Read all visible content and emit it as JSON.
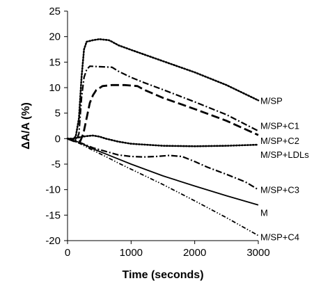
{
  "chart_data": {
    "type": "line",
    "xlabel": "Time (seconds)",
    "ylabel": "ΔA/A (%)",
    "xlim": [
      0,
      3000
    ],
    "ylim": [
      -20,
      25
    ],
    "x_ticks": [
      "0",
      "1000",
      "2000",
      "3000"
    ],
    "y_ticks": [
      "-20",
      "-15",
      "-10",
      "-5",
      "0",
      "5",
      "10",
      "15",
      "20",
      "25"
    ],
    "grid": false,
    "legend": "none",
    "series": [
      {
        "name": "M/SP",
        "style": "dotted",
        "points": [
          [
            0,
            0
          ],
          [
            80,
            -0.3
          ],
          [
            130,
            0.5
          ],
          [
            180,
            4
          ],
          [
            220,
            12
          ],
          [
            260,
            17.5
          ],
          [
            300,
            19
          ],
          [
            400,
            19.3
          ],
          [
            500,
            19.5
          ],
          [
            650,
            19.3
          ],
          [
            700,
            19
          ],
          [
            800,
            18.3
          ],
          [
            1000,
            17.4
          ],
          [
            1500,
            15.2
          ],
          [
            2000,
            13
          ],
          [
            2500,
            10.5
          ],
          [
            3000,
            7.5
          ]
        ]
      },
      {
        "name": "M/SP+C1",
        "style": "dash-dot",
        "points": [
          [
            0,
            0
          ],
          [
            100,
            -0.5
          ],
          [
            150,
            0
          ],
          [
            180,
            1
          ],
          [
            220,
            8
          ],
          [
            260,
            12
          ],
          [
            300,
            13.5
          ],
          [
            350,
            14.2
          ],
          [
            500,
            14.1
          ],
          [
            700,
            14
          ],
          [
            800,
            13.2
          ],
          [
            900,
            12.6
          ],
          [
            1000,
            12
          ],
          [
            1200,
            11
          ],
          [
            1500,
            9.6
          ],
          [
            2000,
            7.2
          ],
          [
            2500,
            4.7
          ],
          [
            3000,
            1.5
          ]
        ]
      },
      {
        "name": "M/SP+C2",
        "style": "long-dash",
        "points": [
          [
            0,
            0
          ],
          [
            100,
            -0.5
          ],
          [
            200,
            -0.5
          ],
          [
            250,
            1
          ],
          [
            300,
            4
          ],
          [
            350,
            7
          ],
          [
            400,
            8.5
          ],
          [
            450,
            9.5
          ],
          [
            550,
            10.3
          ],
          [
            700,
            10.5
          ],
          [
            900,
            10.5
          ],
          [
            1100,
            10.3
          ],
          [
            1200,
            9.6
          ],
          [
            1500,
            8
          ],
          [
            2000,
            5.8
          ],
          [
            2500,
            3.5
          ],
          [
            3000,
            0.7
          ]
        ]
      },
      {
        "name": "M/SP+LDLs",
        "style": "dotted",
        "points": [
          [
            0,
            0
          ],
          [
            100,
            0
          ],
          [
            200,
            0.3
          ],
          [
            300,
            0.5
          ],
          [
            400,
            0.6
          ],
          [
            500,
            0.4
          ],
          [
            600,
            0
          ],
          [
            800,
            -0.6
          ],
          [
            1000,
            -1
          ],
          [
            1500,
            -1.4
          ],
          [
            2000,
            -1.5
          ],
          [
            2500,
            -1.4
          ],
          [
            3000,
            -1.2
          ]
        ]
      },
      {
        "name": "M/SP+C3",
        "style": "dash-dot",
        "points": [
          [
            0,
            0
          ],
          [
            200,
            -0.8
          ],
          [
            400,
            -1.8
          ],
          [
            600,
            -2.5
          ],
          [
            800,
            -3.2
          ],
          [
            1000,
            -3.5
          ],
          [
            1200,
            -3.6
          ],
          [
            1400,
            -3.5
          ],
          [
            1600,
            -3.3
          ],
          [
            1800,
            -3.5
          ],
          [
            2000,
            -4.5
          ],
          [
            2200,
            -5.6
          ],
          [
            2500,
            -7
          ],
          [
            2800,
            -8.5
          ],
          [
            3000,
            -10
          ]
        ]
      },
      {
        "name": "M",
        "style": "solid",
        "points": [
          [
            0,
            0
          ],
          [
            200,
            -0.8
          ],
          [
            400,
            -2
          ],
          [
            600,
            -3
          ],
          [
            800,
            -4
          ],
          [
            1000,
            -5
          ],
          [
            1500,
            -7.3
          ],
          [
            2000,
            -9.3
          ],
          [
            2500,
            -11.2
          ],
          [
            3000,
            -13
          ]
        ]
      },
      {
        "name": "M/SP+C4",
        "style": "dash-dot-dot",
        "points": [
          [
            0,
            0
          ],
          [
            200,
            -1
          ],
          [
            400,
            -2.3
          ],
          [
            600,
            -3.5
          ],
          [
            800,
            -4.8
          ],
          [
            1000,
            -6
          ],
          [
            1500,
            -9
          ],
          [
            2000,
            -12.2
          ],
          [
            2500,
            -15.5
          ],
          [
            3000,
            -19
          ]
        ]
      }
    ]
  }
}
